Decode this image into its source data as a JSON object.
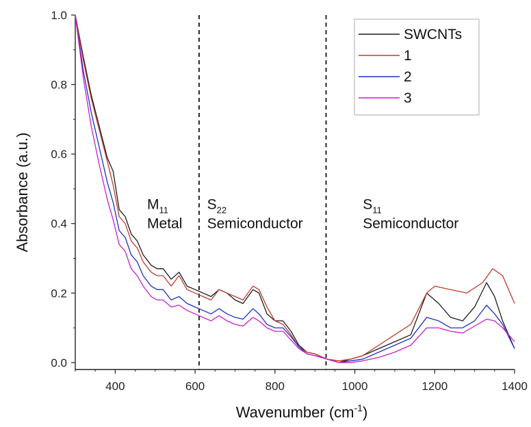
{
  "chart_data": {
    "type": "line",
    "xlabel": "Wavenumber (cm",
    "xlabel_sup": "-1",
    "xlabel_end": ")",
    "ylabel": "Absorbance (a.u.)",
    "xlim": [
      300,
      1400
    ],
    "ylim": [
      -0.02,
      1.0
    ],
    "xticks": [
      400,
      600,
      800,
      1000,
      1200,
      1400
    ],
    "yticks": [
      0.0,
      0.2,
      0.4,
      0.6,
      0.8,
      1.0
    ],
    "xtick_labels": [
      "400",
      "600",
      "800",
      "1000",
      "1200",
      "1400"
    ],
    "ytick_labels": [
      "0.0",
      "0.2",
      "0.4",
      "0.6",
      "0.8",
      "1.0"
    ],
    "legend_position": "top-right",
    "dashed_lines_x": [
      610,
      928
    ],
    "annotations": [
      {
        "letter": "M",
        "sub": "11",
        "text": "Metal",
        "x": 480,
        "y": 0.43
      },
      {
        "letter": "S",
        "sub": "22",
        "text": "Semiconductor",
        "x": 630,
        "y": 0.43
      },
      {
        "letter": "S",
        "sub": "11",
        "text": "Semiconductor",
        "x": 1020,
        "y": 0.43
      }
    ],
    "series": [
      {
        "name": "SWCNTs",
        "color": "#1a1a1a",
        "points": [
          [
            300,
            1.0
          ],
          [
            320,
            0.88
          ],
          [
            340,
            0.77
          ],
          [
            360,
            0.68
          ],
          [
            380,
            0.59
          ],
          [
            395,
            0.55
          ],
          [
            410,
            0.44
          ],
          [
            425,
            0.42
          ],
          [
            440,
            0.37
          ],
          [
            455,
            0.35
          ],
          [
            470,
            0.31
          ],
          [
            490,
            0.28
          ],
          [
            505,
            0.27
          ],
          [
            520,
            0.27
          ],
          [
            540,
            0.24
          ],
          [
            560,
            0.26
          ],
          [
            580,
            0.22
          ],
          [
            600,
            0.21
          ],
          [
            620,
            0.2
          ],
          [
            640,
            0.19
          ],
          [
            660,
            0.21
          ],
          [
            680,
            0.2
          ],
          [
            700,
            0.18
          ],
          [
            720,
            0.17
          ],
          [
            745,
            0.21
          ],
          [
            760,
            0.2
          ],
          [
            780,
            0.14
          ],
          [
            800,
            0.12
          ],
          [
            820,
            0.12
          ],
          [
            840,
            0.09
          ],
          [
            860,
            0.05
          ],
          [
            880,
            0.03
          ],
          [
            900,
            0.025
          ],
          [
            930,
            0.01
          ],
          [
            960,
            0.0
          ],
          [
            990,
            0.01
          ],
          [
            1020,
            0.02
          ],
          [
            1060,
            0.04
          ],
          [
            1100,
            0.06
          ],
          [
            1140,
            0.08
          ],
          [
            1180,
            0.2
          ],
          [
            1210,
            0.17
          ],
          [
            1240,
            0.13
          ],
          [
            1270,
            0.12
          ],
          [
            1300,
            0.16
          ],
          [
            1330,
            0.23
          ],
          [
            1350,
            0.19
          ],
          [
            1370,
            0.12
          ],
          [
            1400,
            0.04
          ]
        ]
      },
      {
        "name": "1",
        "color": "#c0392b",
        "points": [
          [
            300,
            1.0
          ],
          [
            320,
            0.87
          ],
          [
            340,
            0.76
          ],
          [
            360,
            0.67
          ],
          [
            380,
            0.58
          ],
          [
            395,
            0.51
          ],
          [
            410,
            0.42
          ],
          [
            425,
            0.4
          ],
          [
            440,
            0.35
          ],
          [
            455,
            0.33
          ],
          [
            470,
            0.29
          ],
          [
            490,
            0.26
          ],
          [
            505,
            0.25
          ],
          [
            520,
            0.25
          ],
          [
            540,
            0.22
          ],
          [
            560,
            0.25
          ],
          [
            580,
            0.21
          ],
          [
            600,
            0.2
          ],
          [
            620,
            0.19
          ],
          [
            640,
            0.18
          ],
          [
            660,
            0.21
          ],
          [
            680,
            0.2
          ],
          [
            700,
            0.19
          ],
          [
            720,
            0.18
          ],
          [
            745,
            0.22
          ],
          [
            760,
            0.21
          ],
          [
            780,
            0.16
          ],
          [
            800,
            0.12
          ],
          [
            820,
            0.11
          ],
          [
            840,
            0.08
          ],
          [
            860,
            0.045
          ],
          [
            880,
            0.03
          ],
          [
            900,
            0.025
          ],
          [
            930,
            0.01
          ],
          [
            960,
            0.005
          ],
          [
            990,
            0.01
          ],
          [
            1020,
            0.02
          ],
          [
            1060,
            0.05
          ],
          [
            1100,
            0.08
          ],
          [
            1140,
            0.11
          ],
          [
            1180,
            0.2
          ],
          [
            1200,
            0.22
          ],
          [
            1240,
            0.21
          ],
          [
            1280,
            0.2
          ],
          [
            1320,
            0.23
          ],
          [
            1345,
            0.27
          ],
          [
            1370,
            0.25
          ],
          [
            1400,
            0.17
          ]
        ]
      },
      {
        "name": "2",
        "color": "#1f2fbf",
        "points": [
          [
            300,
            1.0
          ],
          [
            320,
            0.84
          ],
          [
            340,
            0.72
          ],
          [
            360,
            0.62
          ],
          [
            380,
            0.52
          ],
          [
            395,
            0.46
          ],
          [
            410,
            0.38
          ],
          [
            425,
            0.36
          ],
          [
            440,
            0.31
          ],
          [
            455,
            0.29
          ],
          [
            470,
            0.25
          ],
          [
            490,
            0.22
          ],
          [
            505,
            0.21
          ],
          [
            520,
            0.21
          ],
          [
            540,
            0.18
          ],
          [
            560,
            0.19
          ],
          [
            580,
            0.17
          ],
          [
            600,
            0.16
          ],
          [
            620,
            0.15
          ],
          [
            640,
            0.14
          ],
          [
            660,
            0.155
          ],
          [
            680,
            0.14
          ],
          [
            700,
            0.13
          ],
          [
            720,
            0.125
          ],
          [
            745,
            0.155
          ],
          [
            760,
            0.14
          ],
          [
            780,
            0.11
          ],
          [
            800,
            0.1
          ],
          [
            820,
            0.1
          ],
          [
            840,
            0.075
          ],
          [
            860,
            0.045
          ],
          [
            880,
            0.025
          ],
          [
            900,
            0.02
          ],
          [
            930,
            0.01
          ],
          [
            960,
            0.0
          ],
          [
            990,
            0.005
          ],
          [
            1020,
            0.01
          ],
          [
            1060,
            0.03
          ],
          [
            1100,
            0.05
          ],
          [
            1140,
            0.07
          ],
          [
            1180,
            0.13
          ],
          [
            1210,
            0.12
          ],
          [
            1240,
            0.1
          ],
          [
            1270,
            0.1
          ],
          [
            1300,
            0.12
          ],
          [
            1330,
            0.165
          ],
          [
            1350,
            0.14
          ],
          [
            1370,
            0.11
          ],
          [
            1400,
            0.04
          ]
        ]
      },
      {
        "name": "3",
        "color": "#c81ec8",
        "points": [
          [
            300,
            1.0
          ],
          [
            320,
            0.82
          ],
          [
            340,
            0.68
          ],
          [
            360,
            0.57
          ],
          [
            380,
            0.47
          ],
          [
            395,
            0.41
          ],
          [
            410,
            0.34
          ],
          [
            425,
            0.32
          ],
          [
            440,
            0.27
          ],
          [
            455,
            0.25
          ],
          [
            470,
            0.22
          ],
          [
            490,
            0.19
          ],
          [
            505,
            0.18
          ],
          [
            520,
            0.18
          ],
          [
            540,
            0.16
          ],
          [
            560,
            0.165
          ],
          [
            580,
            0.15
          ],
          [
            600,
            0.14
          ],
          [
            620,
            0.13
          ],
          [
            640,
            0.12
          ],
          [
            660,
            0.135
          ],
          [
            680,
            0.12
          ],
          [
            700,
            0.11
          ],
          [
            720,
            0.105
          ],
          [
            745,
            0.13
          ],
          [
            760,
            0.12
          ],
          [
            780,
            0.1
          ],
          [
            800,
            0.09
          ],
          [
            820,
            0.09
          ],
          [
            840,
            0.065
          ],
          [
            860,
            0.04
          ],
          [
            880,
            0.025
          ],
          [
            900,
            0.02
          ],
          [
            930,
            0.01
          ],
          [
            960,
            0.0
          ],
          [
            990,
            0.0
          ],
          [
            1020,
            0.005
          ],
          [
            1060,
            0.015
          ],
          [
            1100,
            0.03
          ],
          [
            1140,
            0.05
          ],
          [
            1180,
            0.1
          ],
          [
            1210,
            0.1
          ],
          [
            1240,
            0.09
          ],
          [
            1270,
            0.085
          ],
          [
            1300,
            0.105
          ],
          [
            1330,
            0.125
          ],
          [
            1350,
            0.12
          ],
          [
            1370,
            0.1
          ],
          [
            1400,
            0.06
          ]
        ]
      }
    ]
  }
}
